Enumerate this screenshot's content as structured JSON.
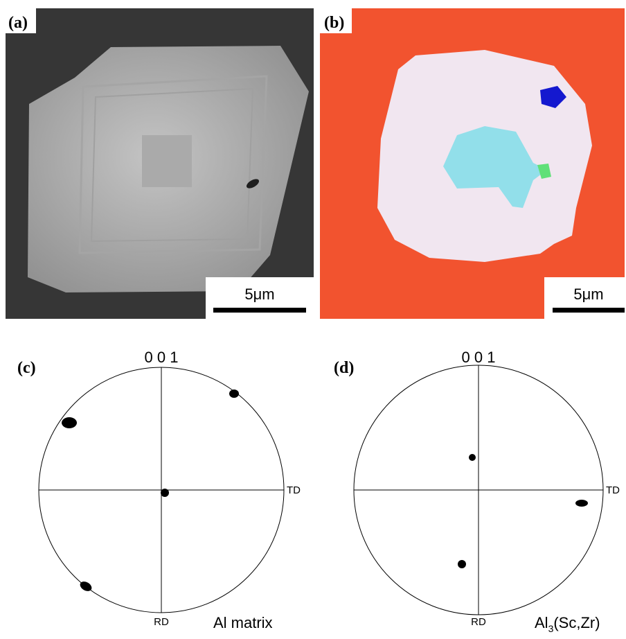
{
  "panels": [
    {
      "label": "(a)",
      "scale_bar": "5μm"
    },
    {
      "label": "(b)",
      "scale_bar": "5μm"
    },
    {
      "label": "(c)",
      "top": "0 0 1",
      "right": "TD",
      "bottom": "RD",
      "caption": {
        "main": "Al matrix"
      }
    },
    {
      "label": "(d)",
      "top": "0 0 1",
      "right": "TD",
      "bottom": "RD",
      "caption": {
        "main": "Al",
        "sub": "3",
        "rest": "(Sc,Zr)"
      }
    }
  ]
}
